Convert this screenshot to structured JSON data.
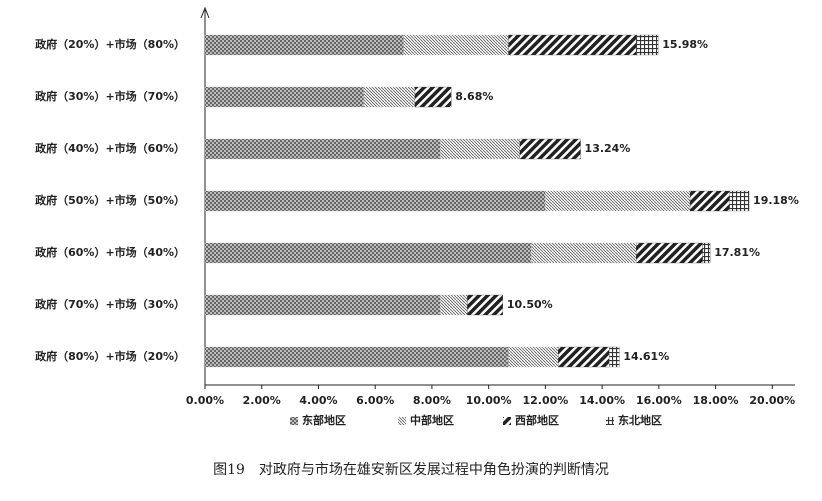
{
  "chart_data": {
    "type": "stacked-bar-horizontal",
    "caption": "图19　对政府与市场在雄安新区发展过程中角色扮演的判断情况",
    "categories": [
      "政府（20%）+市场（80%）",
      "政府（30%）+市场（70%）",
      "政府（40%）+市场（60%）",
      "政府（50%）+市场（50%）",
      "政府（60%）+市场（40%）",
      "政府（70%）+市场（30%）",
      "政府（80%）+市场（20%）"
    ],
    "series": [
      {
        "name": "东部地区",
        "color": "#9a9a9a",
        "values": [
          7.0,
          5.6,
          8.3,
          12.0,
          11.5,
          8.3,
          10.7
        ]
      },
      {
        "name": "中部地区",
        "color": "#c8c8c8",
        "values": [
          3.7,
          1.8,
          2.8,
          5.1,
          3.7,
          0.95,
          1.75
        ]
      },
      {
        "name": "西部地区",
        "color": "#333333",
        "values": [
          4.5,
          1.28,
          2.14,
          1.4,
          2.35,
          1.25,
          1.8
        ]
      },
      {
        "name": "东北地区",
        "color": "#555555",
        "values": [
          0.78,
          0,
          0,
          0.68,
          0.26,
          0,
          0.36
        ]
      }
    ],
    "totals": [
      15.98,
      8.68,
      13.24,
      19.18,
      17.81,
      10.5,
      14.61
    ],
    "total_labels": [
      "15.98%",
      "8.68%",
      "13.24%",
      "19.18%",
      "17.81%",
      "10.50%",
      "14.61%"
    ],
    "xlim": [
      0,
      20.8
    ],
    "xticks": [
      {
        "value": 0,
        "label": "0.00%"
      },
      {
        "value": 2,
        "label": "2.00%"
      },
      {
        "value": 4,
        "label": "4.00%"
      },
      {
        "value": 6,
        "label": "6.00%"
      },
      {
        "value": 8,
        "label": "8.00%"
      },
      {
        "value": 10,
        "label": "10.00%"
      },
      {
        "value": 12,
        "label": "12.00%"
      },
      {
        "value": 14,
        "label": "14.00%"
      },
      {
        "value": 16,
        "label": "16.00%"
      },
      {
        "value": 18,
        "label": "18.00%"
      },
      {
        "value": 20,
        "label": "20.00%"
      }
    ],
    "legend": "bottom"
  }
}
